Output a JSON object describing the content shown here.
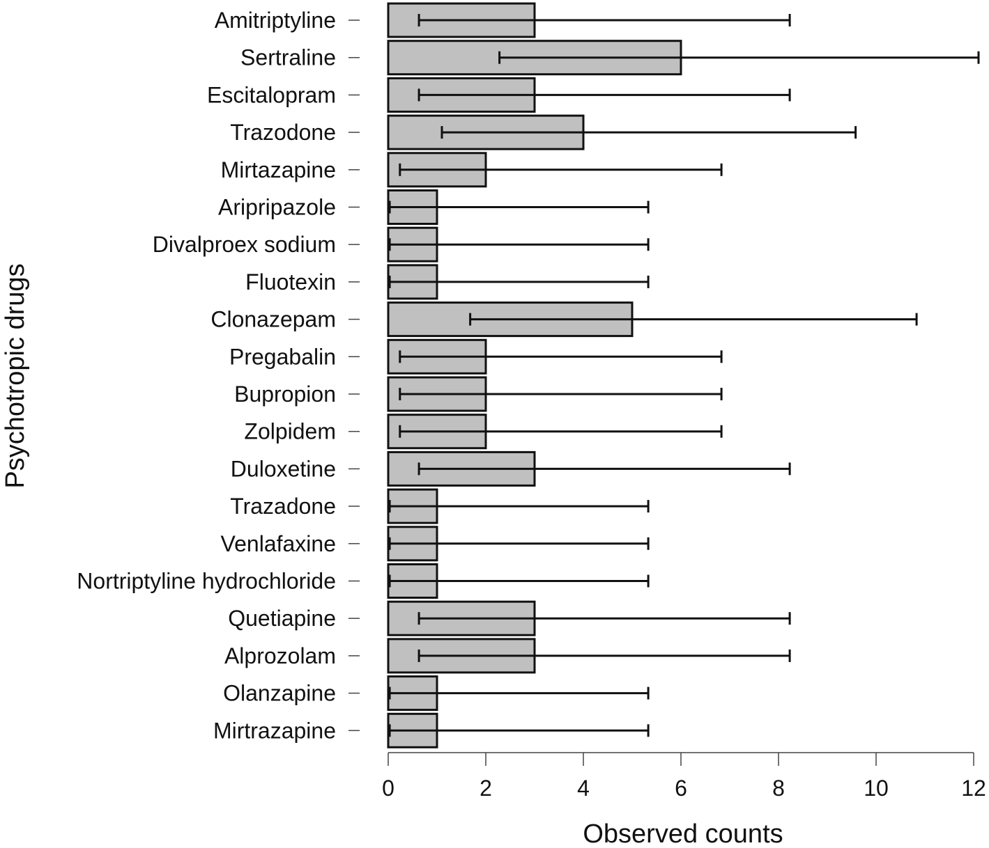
{
  "chart_data": {
    "type": "bar",
    "orientation": "horizontal",
    "title": "",
    "xlabel": "Observed counts",
    "ylabel": "Psychotropic drugs",
    "xlim": [
      0,
      12
    ],
    "xticks": [
      0,
      2,
      4,
      6,
      8,
      10,
      12
    ],
    "grid": false,
    "bar_color": "#c0c0c0",
    "edge_color": "#111111",
    "categories": [
      "Amitriptyline",
      "Sertraline",
      "Escitalopram",
      "Trazodone",
      "Mirtazapine",
      "Aripripazole",
      "Divalproex sodium",
      "Fluotexin",
      "Clonazepam",
      "Pregabalin",
      "Bupropion",
      "Zolpidem",
      "Duloxetine",
      "Trazadone",
      "Venlafaxine",
      "Nortriptyline hydrochloride",
      "Quetiapine",
      "Alprozolam",
      "Olanzapine",
      "Mirtrazapine"
    ],
    "values": [
      3,
      6,
      3,
      4,
      2,
      1,
      1,
      1,
      5,
      2,
      2,
      2,
      3,
      1,
      1,
      1,
      3,
      3,
      1,
      1
    ],
    "error_lower": [
      0.63,
      2.28,
      0.63,
      1.1,
      0.24,
      0.03,
      0.03,
      0.03,
      1.68,
      0.24,
      0.24,
      0.24,
      0.63,
      0.03,
      0.03,
      0.03,
      0.63,
      0.63,
      0.03,
      0.03
    ],
    "error_upper": [
      8.23,
      12.1,
      8.23,
      9.58,
      6.83,
      5.33,
      5.33,
      5.33,
      10.83,
      6.83,
      6.83,
      6.83,
      8.23,
      5.33,
      5.33,
      5.33,
      8.23,
      8.23,
      5.33,
      5.33
    ]
  }
}
